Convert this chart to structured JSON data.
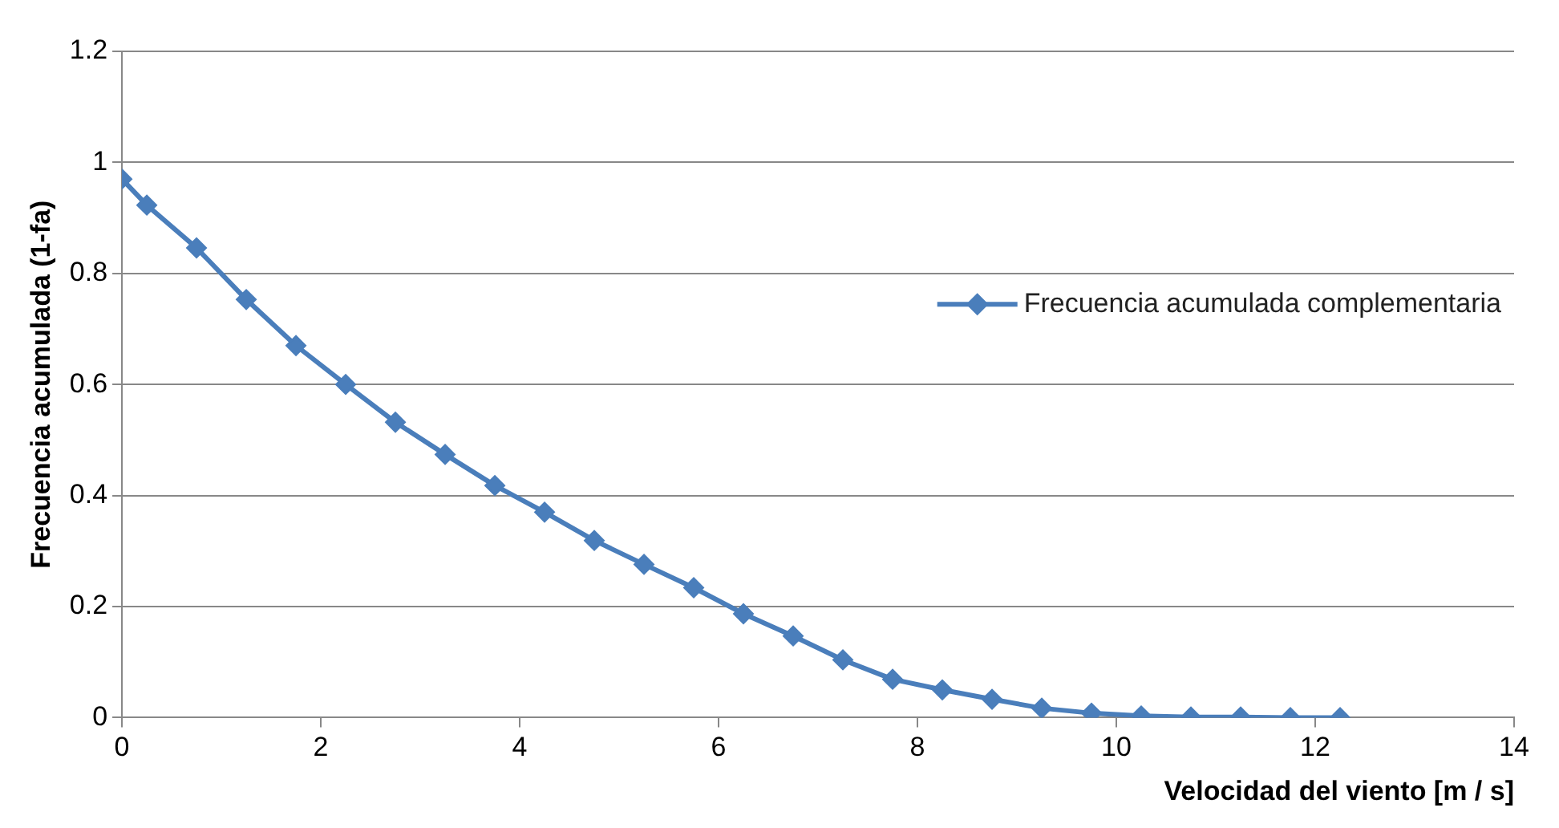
{
  "chart_data": {
    "type": "line",
    "xlabel": "Velocidad del viento [m / s]",
    "ylabel": "Frecuencia acumulada (1-fa)",
    "xlim": [
      0,
      14
    ],
    "xticks": [
      0,
      2,
      4,
      6,
      8,
      10,
      12,
      14
    ],
    "ylim": [
      0,
      1.2
    ],
    "yticks": [
      0,
      0.2,
      0.4,
      0.6,
      0.8,
      1,
      1.2
    ],
    "grid": "y",
    "legend": "right",
    "marker": "diamond",
    "line_style": "solid",
    "series": [
      {
        "name": "Frecuencia acumulada complementaria",
        "color": "#4a7ebb",
        "x": [
          0,
          0.25,
          0.75,
          1.25,
          1.75,
          2.25,
          2.75,
          3.25,
          3.75,
          4.25,
          4.75,
          5.25,
          5.75,
          6.25,
          6.75,
          7.25,
          7.75,
          8.25,
          8.75,
          9.25,
          9.75,
          10.25,
          10.75,
          11.25,
          11.75,
          12.25
        ],
        "values": [
          0.97,
          0.923,
          0.846,
          0.753,
          0.67,
          0.6,
          0.532,
          0.474,
          0.418,
          0.37,
          0.319,
          0.276,
          0.234,
          0.187,
          0.147,
          0.104,
          0.069,
          0.05,
          0.033,
          0.017,
          0.008,
          0.003,
          0.001,
          0.001,
          0,
          0
        ]
      }
    ]
  }
}
